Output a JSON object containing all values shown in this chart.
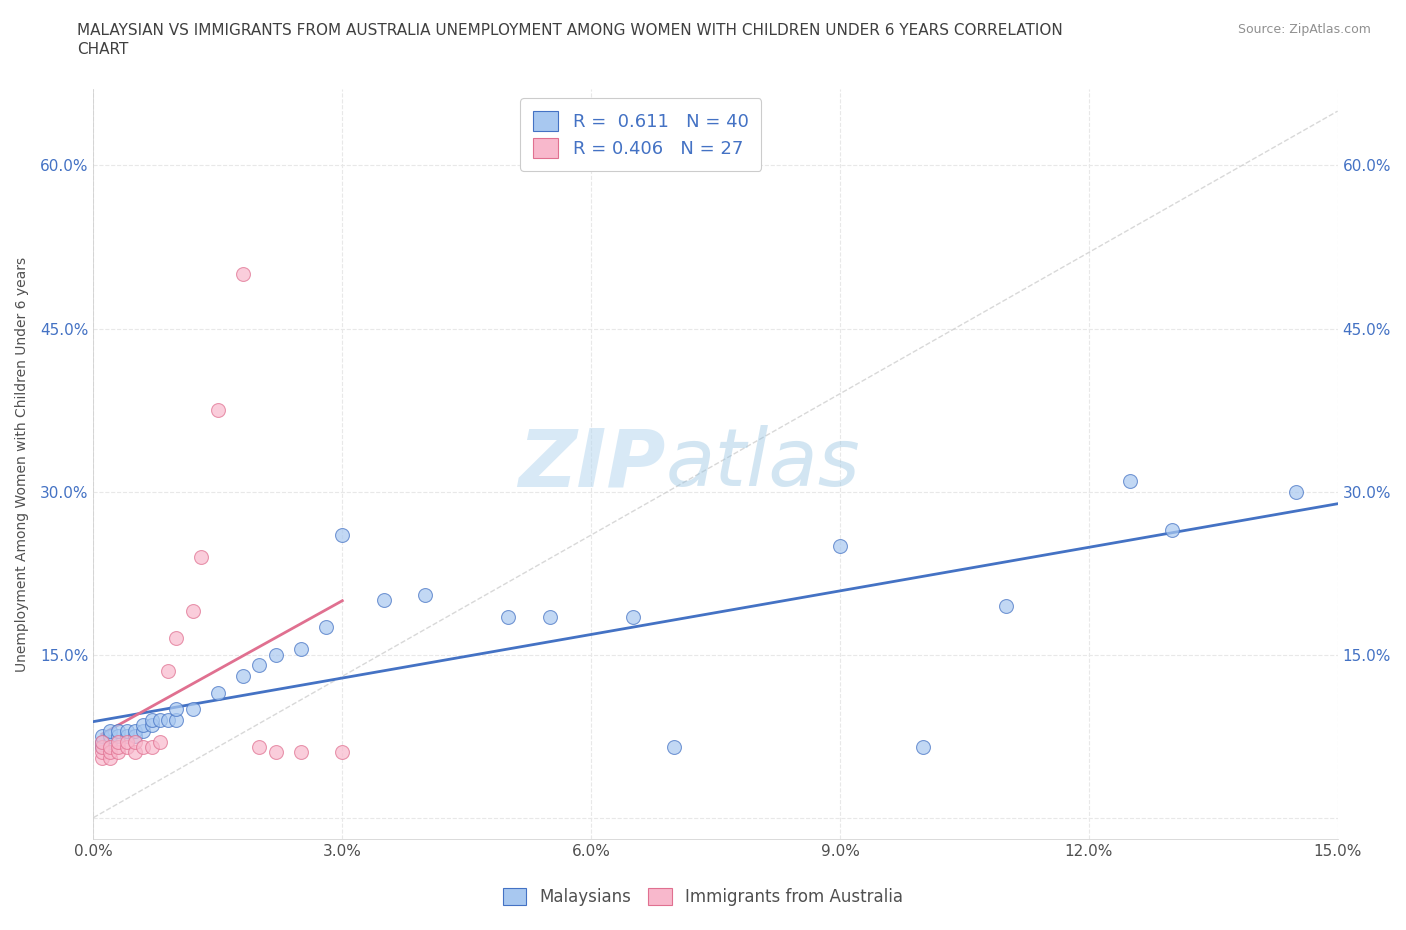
{
  "title_line1": "MALAYSIAN VS IMMIGRANTS FROM AUSTRALIA UNEMPLOYMENT AMONG WOMEN WITH CHILDREN UNDER 6 YEARS CORRELATION",
  "title_line2": "CHART",
  "source": "Source: ZipAtlas.com",
  "ylabel": "Unemployment Among Women with Children Under 6 years",
  "watermark_top": "ZIP",
  "watermark_bot": "atlas",
  "blue_R": 0.611,
  "blue_N": 40,
  "pink_R": 0.406,
  "pink_N": 27,
  "blue_color": "#A8C8F0",
  "pink_color": "#F8B8CC",
  "blue_line_color": "#4472C4",
  "pink_line_color": "#E07090",
  "ref_line_color": "#C8C8C8",
  "xlim": [
    0.0,
    0.15
  ],
  "ylim": [
    -0.02,
    0.67
  ],
  "xticks": [
    0.0,
    0.03,
    0.06,
    0.09,
    0.12,
    0.15
  ],
  "yticks": [
    0.0,
    0.15,
    0.3,
    0.45,
    0.6
  ],
  "xtick_labels": [
    "0.0%",
    "3.0%",
    "6.0%",
    "9.0%",
    "12.0%",
    "15.0%"
  ],
  "ytick_labels": [
    "",
    "15.0%",
    "30.0%",
    "45.0%",
    "60.0%"
  ],
  "blue_x": [
    0.001,
    0.001,
    0.001,
    0.002,
    0.002,
    0.002,
    0.003,
    0.003,
    0.004,
    0.004,
    0.005,
    0.005,
    0.006,
    0.006,
    0.007,
    0.007,
    0.008,
    0.009,
    0.01,
    0.01,
    0.012,
    0.015,
    0.018,
    0.02,
    0.022,
    0.025,
    0.028,
    0.03,
    0.035,
    0.04,
    0.05,
    0.055,
    0.065,
    0.07,
    0.09,
    0.1,
    0.11,
    0.125,
    0.13,
    0.145
  ],
  "blue_y": [
    0.065,
    0.07,
    0.075,
    0.07,
    0.075,
    0.08,
    0.075,
    0.08,
    0.075,
    0.08,
    0.075,
    0.08,
    0.08,
    0.085,
    0.085,
    0.09,
    0.09,
    0.09,
    0.09,
    0.1,
    0.1,
    0.115,
    0.13,
    0.14,
    0.15,
    0.155,
    0.175,
    0.26,
    0.2,
    0.205,
    0.185,
    0.185,
    0.185,
    0.065,
    0.25,
    0.065,
    0.195,
    0.31,
    0.265,
    0.3
  ],
  "pink_x": [
    0.001,
    0.001,
    0.001,
    0.001,
    0.002,
    0.002,
    0.002,
    0.003,
    0.003,
    0.003,
    0.004,
    0.004,
    0.005,
    0.005,
    0.006,
    0.007,
    0.008,
    0.009,
    0.01,
    0.012,
    0.013,
    0.015,
    0.018,
    0.02,
    0.022,
    0.025,
    0.03
  ],
  "pink_y": [
    0.055,
    0.06,
    0.065,
    0.07,
    0.055,
    0.06,
    0.065,
    0.06,
    0.065,
    0.07,
    0.065,
    0.07,
    0.06,
    0.07,
    0.065,
    0.065,
    0.07,
    0.135,
    0.165,
    0.19,
    0.24,
    0.375,
    0.5,
    0.065,
    0.06,
    0.06,
    0.06
  ],
  "legend_label_blue": "Malaysians",
  "legend_label_pink": "Immigrants from Australia",
  "grid_color": "#E8E8E8",
  "grid_style": "--",
  "bg_color": "#FFFFFF",
  "title_color": "#404040",
  "source_color": "#909090",
  "axis_label_color": "#505050"
}
